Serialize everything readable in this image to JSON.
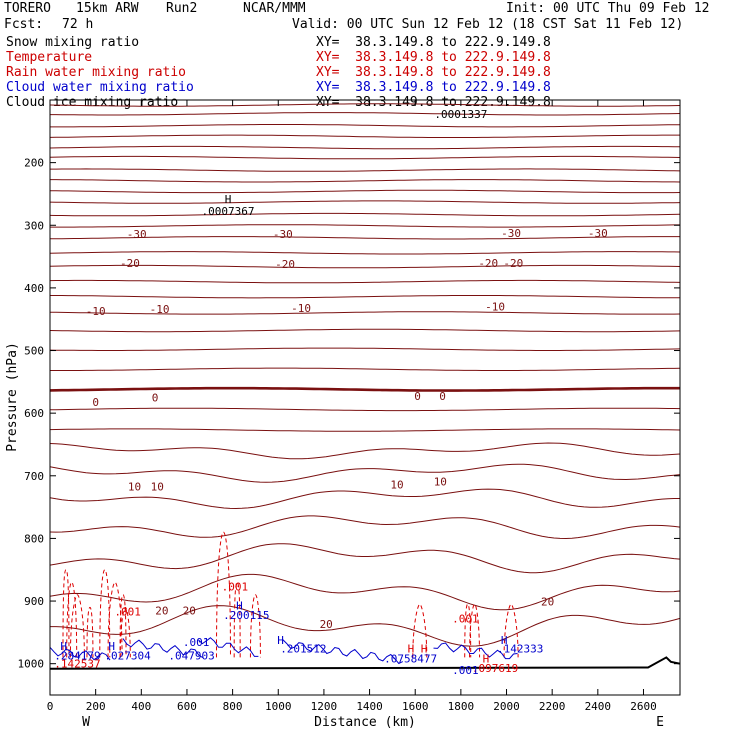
{
  "header": {
    "project": "TORERO",
    "model": "15km ARW",
    "run": "Run2",
    "org": "NCAR/MMM",
    "init": "Init: 00 UTC Thu 09 Feb 12",
    "fcst_label": "Fcst:",
    "fcst_value": "72 h",
    "valid": "Valid: 00 UTC Sun 12 Feb 12 (18 CST Sat 11 Feb 12)"
  },
  "legend": [
    {
      "name": "Snow mixing ratio",
      "color": "#000000",
      "xy": "XY=  38.3.149.8 to 222.9.149.8"
    },
    {
      "name": "Temperature",
      "color": "#cc0000",
      "xy": "XY=  38.3.149.8 to 222.9.149.8"
    },
    {
      "name": "Rain water mixing ratio",
      "color": "#cc0000",
      "xy": "XY=  38.3.149.8 to 222.9.149.8"
    },
    {
      "name": "Cloud water mixing ratio",
      "color": "#0000cc",
      "xy": "XY=  38.3.149.8 to 222.9.149.8"
    },
    {
      "name": "Cloud ice mixing ratio",
      "color": "#000000",
      "xy": "XY=  38.3.149.8 to 222.9.149.8"
    }
  ],
  "colors": {
    "temperature": "#7a1010",
    "rain": "#dd0000",
    "cloud_water": "#0000cc",
    "snow": "#000000"
  },
  "chart_data": {
    "type": "contour-cross-section",
    "xlabel": "Distance (km)",
    "ylabel": "Pressure (hPa)",
    "xlim": [
      0,
      2760
    ],
    "x_ticks": [
      0,
      200,
      400,
      600,
      800,
      1000,
      1200,
      1400,
      1600,
      1800,
      2000,
      2200,
      2400,
      2600
    ],
    "x_tick_labels": [
      "0",
      "200",
      "400",
      "600",
      "800",
      "1000",
      "1200",
      "1400",
      "1600",
      "1800",
      "2000",
      "2200",
      "2400",
      "2600"
    ],
    "ylim": [
      100,
      1050
    ],
    "y_ticks": [
      200,
      300,
      400,
      500,
      600,
      700,
      800,
      900,
      1000
    ],
    "y_tick_labels": [
      "200",
      "300",
      "400",
      "500",
      "600",
      "700",
      "800",
      "900",
      "1000"
    ],
    "endpoints": {
      "left": "W",
      "right": "E"
    },
    "temperature_isotherm_pressures": [
      108,
      122,
      141,
      158,
      176,
      192,
      212,
      229,
      246,
      263,
      283,
      301,
      320,
      344,
      366,
      390,
      414,
      440,
      468,
      498,
      530,
      562,
      594,
      627,
      660,
      695,
      735,
      780,
      830,
      885,
      940
    ],
    "temperature_labels": [
      {
        "text": "-30",
        "x": 380,
        "p": 314
      },
      {
        "text": "-30",
        "x": 1020,
        "p": 314
      },
      {
        "text": "-30",
        "x": 2020,
        "p": 312
      },
      {
        "text": "-30",
        "x": 2400,
        "p": 312
      },
      {
        "text": "-20",
        "x": 350,
        "p": 360
      },
      {
        "text": "-20",
        "x": 1030,
        "p": 362
      },
      {
        "text": "-20",
        "x": 1920,
        "p": 360
      },
      {
        "text": "-20",
        "x": 2030,
        "p": 360
      },
      {
        "text": "-10",
        "x": 200,
        "p": 437
      },
      {
        "text": "-10",
        "x": 480,
        "p": 434
      },
      {
        "text": "-10",
        "x": 1100,
        "p": 432
      },
      {
        "text": "-10",
        "x": 1950,
        "p": 430
      },
      {
        "text": "0",
        "x": 200,
        "p": 582
      },
      {
        "text": "0",
        "x": 460,
        "p": 575
      },
      {
        "text": "0",
        "x": 1610,
        "p": 573
      },
      {
        "text": "0",
        "x": 1720,
        "p": 573
      },
      {
        "text": "10",
        "x": 370,
        "p": 717
      },
      {
        "text": "10",
        "x": 470,
        "p": 717
      },
      {
        "text": "10",
        "x": 1520,
        "p": 714
      },
      {
        "text": "10",
        "x": 1710,
        "p": 709
      },
      {
        "text": "20",
        "x": 490,
        "p": 915
      },
      {
        "text": "20",
        "x": 610,
        "p": 915
      },
      {
        "text": "20",
        "x": 1210,
        "p": 937
      },
      {
        "text": "20",
        "x": 2180,
        "p": 901
      }
    ],
    "extrema_labels": [
      {
        "text": "H",
        "x": 780,
        "p": 258,
        "color": "#000000"
      },
      {
        "text": ".0007367",
        "x": 780,
        "p": 277,
        "color": "#000000"
      },
      {
        "text": ".0001337",
        "x": 1800,
        "p": 122,
        "color": "#000000"
      },
      {
        "text": ".001",
        "x": 810,
        "p": 877,
        "color": "#dd0000"
      },
      {
        "text": ".001",
        "x": 340,
        "p": 917,
        "color": "#dd0000"
      },
      {
        "text": ".001",
        "x": 1820,
        "p": 928,
        "color": "#dd0000"
      },
      {
        "text": "H",
        "x": 830,
        "p": 907,
        "color": "#0000cc"
      },
      {
        "text": ".200115",
        "x": 860,
        "p": 922,
        "color": "#0000cc"
      },
      {
        "text": "H",
        "x": 60,
        "p": 972,
        "color": "#0000cc"
      },
      {
        "text": ".284179",
        "x": 120,
        "p": 987,
        "color": "#0000cc"
      },
      {
        "text": ".142537",
        "x": 120,
        "p": 1000,
        "color": "#dd0000"
      },
      {
        "text": "H",
        "x": 270,
        "p": 972,
        "color": "#0000cc"
      },
      {
        "text": ".027304",
        "x": 340,
        "p": 987,
        "color": "#0000cc"
      },
      {
        "text": ".001",
        "x": 640,
        "p": 965,
        "color": "#0000cc"
      },
      {
        "text": ".047903",
        "x": 620,
        "p": 987,
        "color": "#0000cc"
      },
      {
        "text": "H",
        "x": 1010,
        "p": 962,
        "color": "#0000cc"
      },
      {
        "text": ".201512",
        "x": 1110,
        "p": 976,
        "color": "#0000cc"
      },
      {
        "text": "H H",
        "x": 1610,
        "p": 976,
        "color": "#dd0000"
      },
      {
        "text": ".0758477",
        "x": 1580,
        "p": 992,
        "color": "#0000cc"
      },
      {
        "text": "H",
        "x": 1990,
        "p": 962,
        "color": "#0000cc"
      },
      {
        "text": ".142333",
        "x": 2060,
        "p": 976,
        "color": "#0000cc"
      },
      {
        "text": "H",
        "x": 1910,
        "p": 992,
        "color": "#dd0000"
      },
      {
        "text": ".097619",
        "x": 1950,
        "p": 1007,
        "color": "#dd0000"
      },
      {
        "text": ".001",
        "x": 1820,
        "p": 1010,
        "color": "#0000cc"
      }
    ]
  }
}
